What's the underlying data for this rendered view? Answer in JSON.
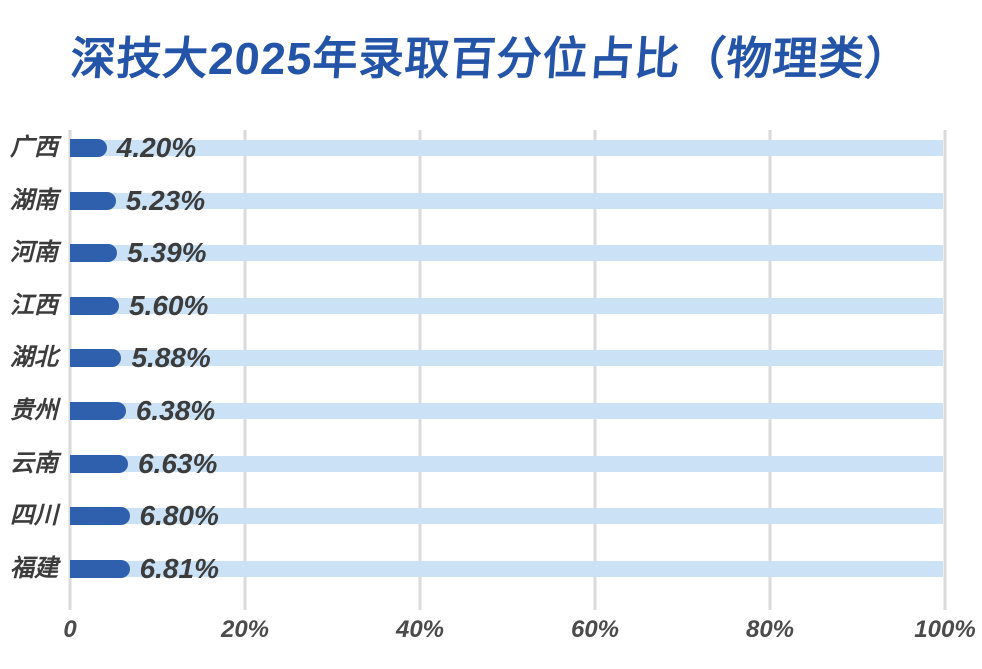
{
  "title": "深技大2025年录取百分位占比（物理类）",
  "colors": {
    "title": "#2454A8",
    "bar": "#2F60AE",
    "track": "#CBE2F6",
    "grid": "#DADADA",
    "value_label": "#3C3C3C",
    "category_label": "#3C3C3C",
    "tick_label": "#4B4B4B",
    "background": "#ffffff"
  },
  "chart_data": {
    "type": "bar",
    "orientation": "horizontal",
    "title": "深技大2025年录取百分位占比（物理类）",
    "categories": [
      "广西",
      "湖南",
      "河南",
      "江西",
      "湖北",
      "贵州",
      "云南",
      "四川",
      "福建"
    ],
    "values": [
      4.2,
      5.23,
      5.39,
      5.6,
      5.88,
      6.38,
      6.63,
      6.8,
      6.81
    ],
    "value_labels": [
      "4.20%",
      "5.23%",
      "5.39%",
      "5.60%",
      "5.88%",
      "6.38%",
      "6.63%",
      "6.80%",
      "6.81%"
    ],
    "xlabel": "",
    "ylabel": "",
    "xlim": [
      0,
      100
    ],
    "x_ticks": [
      "0",
      "20%",
      "40%",
      "60%",
      "80%",
      "100%"
    ],
    "x_tick_values": [
      0,
      20,
      40,
      60,
      80,
      100
    ],
    "grid": true,
    "legend": false,
    "sort_order": "ascending"
  }
}
